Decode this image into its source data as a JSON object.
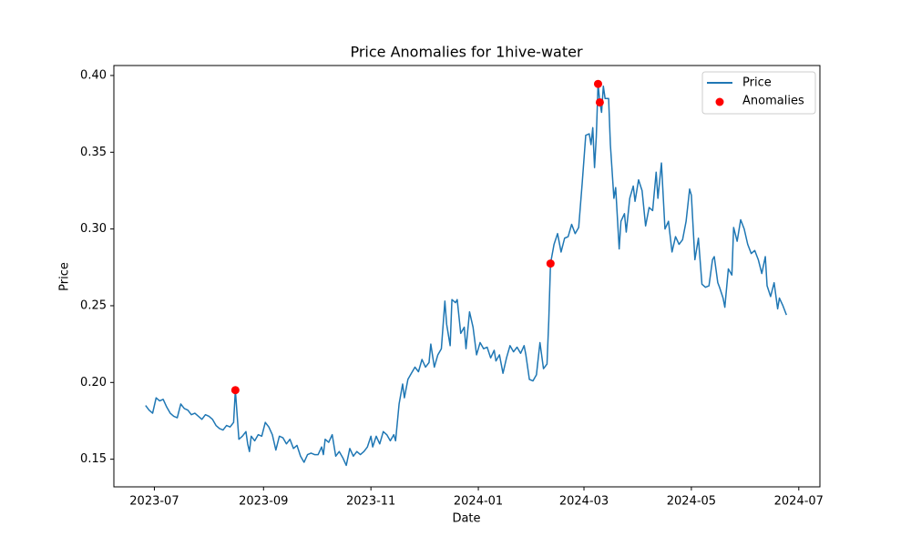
{
  "chart_data": {
    "type": "line",
    "title": "Price Anomalies for 1hive-water",
    "xlabel": "Date",
    "ylabel": "Price",
    "xlim": [
      -23,
      378
    ],
    "ylim": [
      0.132,
      0.4065
    ],
    "xticks": [
      {
        "value": 0,
        "label": "2023-07"
      },
      {
        "value": 62,
        "label": "2023-09"
      },
      {
        "value": 123,
        "label": "2023-11"
      },
      {
        "value": 184,
        "label": "2024-01"
      },
      {
        "value": 244,
        "label": "2024-03"
      },
      {
        "value": 305,
        "label": "2024-05"
      },
      {
        "value": 366,
        "label": "2024-07"
      }
    ],
    "yticks": [
      0.15,
      {
        "value": 0.2,
        "label": "0.20"
      },
      0.25,
      {
        "value": 0.3,
        "label": "0.30"
      },
      0.35,
      {
        "value": 0.4,
        "label": "0.40"
      }
    ],
    "legend": "upper right",
    "series": [
      {
        "name": "Price",
        "type": "line",
        "color": "#1f77b4",
        "x": [
          -5,
          -3,
          -1,
          1,
          3,
          5,
          7,
          9,
          11,
          13,
          15,
          17,
          19,
          21,
          23,
          25,
          27,
          29,
          31,
          33,
          35,
          37,
          39,
          41,
          43,
          45,
          46,
          48,
          50,
          52,
          53,
          54,
          55,
          57,
          59,
          61,
          63,
          65,
          67,
          69,
          71,
          73,
          75,
          77,
          79,
          81,
          83,
          85,
          87,
          89,
          91,
          93,
          95,
          96,
          97,
          99,
          101,
          103,
          105,
          107,
          109,
          111,
          113,
          115,
          117,
          119,
          121,
          123,
          124,
          126,
          128,
          130,
          132,
          134,
          136,
          137,
          139,
          141,
          142,
          144,
          146,
          148,
          150,
          152,
          154,
          156,
          157,
          159,
          161,
          163,
          165,
          166,
          168,
          169,
          171,
          172,
          174,
          176,
          177,
          179,
          181,
          183,
          185,
          187,
          189,
          191,
          193,
          194,
          196,
          198,
          200,
          202,
          204,
          206,
          208,
          210,
          211,
          213,
          215,
          217,
          219,
          221,
          223,
          224,
          225,
          227,
          229,
          231,
          233,
          235,
          237,
          239,
          241,
          243,
          245,
          247,
          248,
          249,
          250,
          251,
          252,
          253,
          254,
          255,
          256,
          258,
          259,
          261,
          262,
          264,
          265,
          267,
          268,
          270,
          272,
          273,
          275,
          277,
          279,
          281,
          283,
          285,
          286,
          288,
          290,
          292,
          294,
          296,
          298,
          300,
          302,
          304,
          305,
          307,
          309,
          311,
          313,
          315,
          317,
          318,
          320,
          321,
          323,
          324,
          326,
          328,
          329,
          331,
          333,
          335,
          337,
          339,
          341,
          343,
          345,
          347,
          348,
          350,
          352,
          354,
          355,
          357,
          359
        ],
        "values": [
          0.185,
          0.182,
          0.18,
          0.19,
          0.188,
          0.189,
          0.184,
          0.18,
          0.178,
          0.177,
          0.186,
          0.183,
          0.182,
          0.179,
          0.18,
          0.178,
          0.176,
          0.179,
          0.178,
          0.176,
          0.172,
          0.17,
          0.169,
          0.172,
          0.171,
          0.174,
          0.195,
          0.163,
          0.165,
          0.168,
          0.16,
          0.155,
          0.165,
          0.162,
          0.166,
          0.165,
          0.174,
          0.171,
          0.166,
          0.156,
          0.165,
          0.164,
          0.16,
          0.163,
          0.157,
          0.159,
          0.152,
          0.148,
          0.153,
          0.154,
          0.153,
          0.153,
          0.158,
          0.153,
          0.163,
          0.161,
          0.166,
          0.152,
          0.155,
          0.151,
          0.146,
          0.157,
          0.152,
          0.155,
          0.153,
          0.155,
          0.158,
          0.165,
          0.158,
          0.165,
          0.16,
          0.168,
          0.166,
          0.162,
          0.166,
          0.162,
          0.186,
          0.199,
          0.19,
          0.202,
          0.206,
          0.21,
          0.207,
          0.215,
          0.21,
          0.213,
          0.225,
          0.21,
          0.218,
          0.222,
          0.253,
          0.238,
          0.224,
          0.254,
          0.252,
          0.254,
          0.232,
          0.236,
          0.222,
          0.246,
          0.236,
          0.218,
          0.226,
          0.222,
          0.223,
          0.216,
          0.221,
          0.214,
          0.218,
          0.206,
          0.216,
          0.224,
          0.22,
          0.223,
          0.219,
          0.224,
          0.218,
          0.202,
          0.201,
          0.205,
          0.226,
          0.209,
          0.212,
          0.24,
          0.2775,
          0.29,
          0.297,
          0.285,
          0.294,
          0.295,
          0.303,
          0.297,
          0.301,
          0.33,
          0.361,
          0.362,
          0.355,
          0.366,
          0.34,
          0.36,
          0.3945,
          0.3825,
          0.376,
          0.393,
          0.385,
          0.385,
          0.355,
          0.32,
          0.327,
          0.287,
          0.305,
          0.31,
          0.298,
          0.32,
          0.328,
          0.318,
          0.332,
          0.325,
          0.302,
          0.314,
          0.312,
          0.337,
          0.32,
          0.343,
          0.3,
          0.305,
          0.285,
          0.295,
          0.29,
          0.293,
          0.305,
          0.326,
          0.322,
          0.28,
          0.294,
          0.264,
          0.262,
          0.263,
          0.28,
          0.282,
          0.265,
          0.262,
          0.255,
          0.249,
          0.274,
          0.27,
          0.301,
          0.292,
          0.306,
          0.3,
          0.29,
          0.284,
          0.286,
          0.28,
          0.271,
          0.282,
          0.263,
          0.256,
          0.265,
          0.248,
          0.255,
          0.25,
          0.244
        ]
      },
      {
        "name": "Anomalies",
        "type": "scatter",
        "color": "#ff0000",
        "x": [
          46,
          225,
          252,
          253
        ],
        "values": [
          0.195,
          0.2775,
          0.3945,
          0.3825
        ]
      }
    ]
  }
}
